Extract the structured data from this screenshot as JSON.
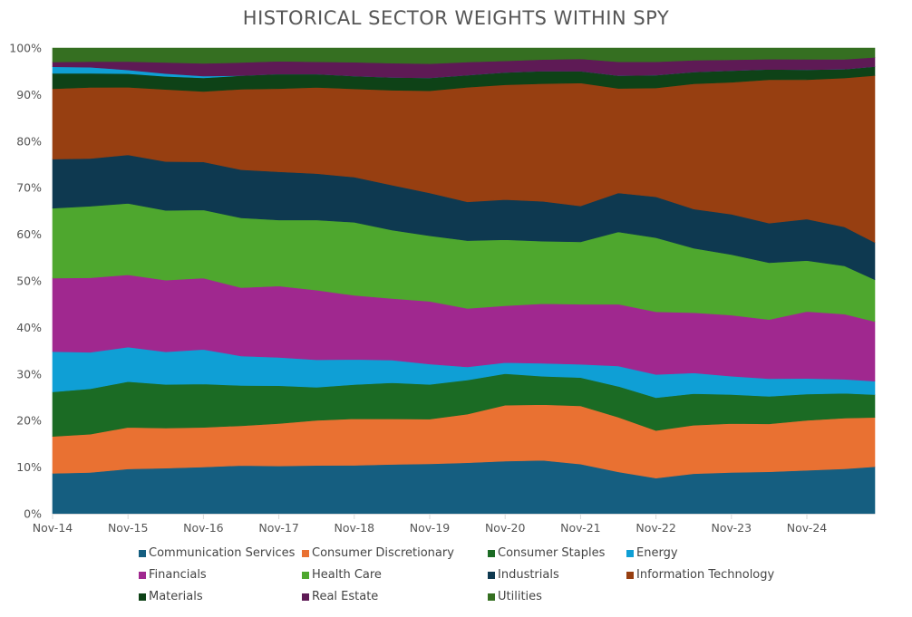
{
  "chart_data": {
    "type": "area",
    "stacked": true,
    "normalized": true,
    "title": "HISTORICAL SECTOR WEIGHTS WITHIN SPY",
    "xlabel": "",
    "ylabel": "",
    "ylim": [
      0,
      100
    ],
    "yticks": [
      "0%",
      "10%",
      "20%",
      "30%",
      "40%",
      "50%",
      "60%",
      "70%",
      "80%",
      "90%",
      "100%"
    ],
    "xticks": [
      "Nov-14",
      "Nov-15",
      "Nov-16",
      "Nov-17",
      "Nov-18",
      "Nov-19",
      "Nov-20",
      "Nov-21",
      "Nov-22",
      "Nov-23",
      "Nov-24"
    ],
    "x": [
      "Nov-14",
      "May-15",
      "Nov-15",
      "May-16",
      "Nov-16",
      "May-17",
      "Nov-17",
      "May-18",
      "Nov-18",
      "May-19",
      "Nov-19",
      "May-20",
      "Nov-20",
      "May-21",
      "Nov-21",
      "May-22",
      "Nov-22",
      "May-23",
      "Nov-23",
      "May-24",
      "Nov-24",
      "May-25",
      "Sep-25"
    ],
    "legend_position": "bottom",
    "grid": false,
    "series": [
      {
        "name": "Communication Services",
        "color": "#155E80",
        "values": [
          8.6,
          8.8,
          9.6,
          9.8,
          10.0,
          10.3,
          10.1,
          10.2,
          10.2,
          10.4,
          10.5,
          10.9,
          11.0,
          11.1,
          10.5,
          8.8,
          7.5,
          8.5,
          8.8,
          9.0,
          9.2,
          9.6,
          10.1
        ]
      },
      {
        "name": "Consumer Discretionary",
        "color": "#E97132",
        "values": [
          7.9,
          8.2,
          8.9,
          8.6,
          8.5,
          8.5,
          9.0,
          9.5,
          9.8,
          9.6,
          9.4,
          10.4,
          11.7,
          11.6,
          12.3,
          11.5,
          10.0,
          10.3,
          10.4,
          10.3,
          10.6,
          10.8,
          10.6
        ]
      },
      {
        "name": "Consumer Staples",
        "color": "#1B6B24",
        "values": [
          9.5,
          9.7,
          9.8,
          9.4,
          9.3,
          8.6,
          8.0,
          7.0,
          7.2,
          7.6,
          7.3,
          7.3,
          6.6,
          5.9,
          6.0,
          6.5,
          6.9,
          6.7,
          6.2,
          5.9,
          5.6,
          5.3,
          4.9
        ]
      },
      {
        "name": "Energy",
        "color": "#0F9FD5",
        "values": [
          8.6,
          7.8,
          7.4,
          7.0,
          7.4,
          6.3,
          6.0,
          5.8,
          5.3,
          4.8,
          4.3,
          2.8,
          2.3,
          2.7,
          2.8,
          4.3,
          4.9,
          4.4,
          3.9,
          3.8,
          3.3,
          3.0,
          2.9
        ]
      },
      {
        "name": "Financials",
        "color": "#A0288F",
        "values": [
          15.7,
          15.9,
          15.5,
          15.4,
          15.3,
          14.6,
          15.1,
          14.7,
          13.5,
          13.0,
          13.2,
          12.5,
          11.9,
          12.4,
          12.7,
          13.0,
          13.2,
          12.8,
          13.0,
          12.7,
          14.2,
          13.9,
          12.8
        ]
      },
      {
        "name": "Health Care",
        "color": "#4EA72E",
        "values": [
          14.9,
          15.3,
          15.3,
          15.0,
          14.6,
          14.9,
          14.0,
          14.8,
          15.4,
          14.4,
          13.8,
          14.5,
          13.8,
          13.0,
          13.2,
          15.2,
          15.6,
          13.7,
          12.9,
          12.2,
          10.8,
          10.3,
          9.0
        ]
      },
      {
        "name": "Industrials",
        "color": "#0E3950",
        "values": [
          10.5,
          10.2,
          10.4,
          10.5,
          10.3,
          10.3,
          10.2,
          9.8,
          9.5,
          9.5,
          9.0,
          8.3,
          8.4,
          8.3,
          7.6,
          8.2,
          8.6,
          8.3,
          8.6,
          8.5,
          8.8,
          8.3,
          8.0
        ]
      },
      {
        "name": "Information Technology",
        "color": "#973F11",
        "values": [
          15.0,
          15.2,
          14.5,
          15.5,
          15.1,
          17.2,
          17.6,
          18.2,
          18.6,
          20.0,
          21.5,
          24.5,
          24.0,
          24.5,
          26.0,
          22.0,
          22.9,
          26.6,
          28.1,
          30.8,
          29.6,
          31.8,
          35.9
        ]
      },
      {
        "name": "Materials",
        "color": "#0E4217",
        "values": [
          3.3,
          3.0,
          2.9,
          2.8,
          2.9,
          2.9,
          3.1,
          2.8,
          2.7,
          2.7,
          2.7,
          2.6,
          2.6,
          2.6,
          2.5,
          2.7,
          2.7,
          2.5,
          2.5,
          2.2,
          2.1,
          1.9,
          1.9
        ]
      },
      {
        "name": "Real Estate",
        "color": "#5E1A55",
        "values": [
          1.0,
          1.2,
          1.8,
          2.4,
          2.7,
          2.8,
          2.7,
          2.6,
          2.9,
          3.0,
          3.0,
          2.8,
          2.4,
          2.4,
          2.6,
          2.9,
          2.8,
          2.5,
          2.3,
          2.2,
          2.2,
          2.1,
          2.0
        ]
      },
      {
        "name": "Utilities",
        "color": "#356F21",
        "values": [
          3.0,
          2.9,
          2.9,
          3.1,
          3.3,
          3.1,
          2.8,
          2.9,
          3.0,
          3.2,
          3.3,
          3.0,
          2.7,
          2.4,
          2.3,
          2.9,
          2.9,
          2.6,
          2.5,
          2.4,
          2.4,
          2.4,
          2.0
        ]
      }
    ],
    "energy_upper_sliver": [
      1.4,
      1.3,
      0.8,
      0.6,
      0.4,
      0.0,
      0.0,
      0.0,
      0.0,
      0.0,
      0.0,
      0.0,
      0.0,
      0.0,
      0.0,
      0.0,
      0.0,
      0.0,
      0.0,
      0.0,
      0.0,
      0.0,
      0.0
    ]
  }
}
